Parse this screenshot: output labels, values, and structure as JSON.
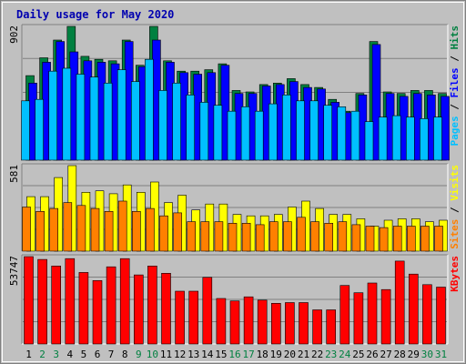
{
  "colors": {
    "background": "#c0c0c0",
    "plot_bg": "#c0c0c0",
    "gridline": "#808080",
    "title": "#0000b0",
    "hits": "#008040",
    "files": "#0000ff",
    "pages": "#00c0ff",
    "visits": "#ffff00",
    "sites": "#ff8000",
    "kbytes": "#ff0000",
    "day_weekday": "#000000",
    "day_weekend": "#008040"
  },
  "chart_data": {
    "type": "bar",
    "title": "Daily usage for May 2020",
    "categories": [
      "1",
      "2",
      "3",
      "4",
      "5",
      "6",
      "7",
      "8",
      "9",
      "10",
      "11",
      "12",
      "13",
      "14",
      "15",
      "16",
      "17",
      "18",
      "19",
      "20",
      "21",
      "22",
      "23",
      "24",
      "25",
      "26",
      "27",
      "28",
      "29",
      "30",
      "31"
    ],
    "weekend_days": [
      "2",
      "3",
      "9",
      "10",
      "16",
      "17",
      "23",
      "24",
      "30",
      "31"
    ],
    "panels": [
      {
        "name": "hits-files-pages",
        "axis_max_label": "902",
        "ymax": 902,
        "right_label_parts": [
          {
            "text": "Pages",
            "color_key": "pages"
          },
          {
            "text": " / ",
            "color_key": "day_weekday"
          },
          {
            "text": "Files",
            "color_key": "files"
          },
          {
            "text": " / ",
            "color_key": "day_weekday"
          },
          {
            "text": "Hits",
            "color_key": "hits"
          }
        ],
        "series": [
          {
            "name": "Hits",
            "color_key": "hits",
            "values": [
              570,
              690,
              810,
              902,
              700,
              680,
              670,
              810,
              640,
              902,
              670,
              600,
              600,
              610,
              650,
              470,
              460,
              510,
              520,
              550,
              510,
              490,
              410,
              330,
              450,
              800,
              460,
              450,
              470,
              470,
              450
            ]
          },
          {
            "name": "Files",
            "color_key": "files",
            "values": [
              520,
              660,
              800,
              730,
              670,
              660,
              650,
              800,
              630,
              810,
              660,
              590,
              580,
              590,
              640,
              450,
              450,
              500,
              510,
              530,
              490,
              480,
              390,
              320,
              440,
              780,
              450,
              430,
              450,
              440,
              430
            ]
          },
          {
            "name": "Pages",
            "color_key": "pages",
            "values": [
              400,
              410,
              600,
              620,
              580,
              560,
              520,
              610,
              530,
              680,
              470,
              520,
              440,
              390,
              370,
              330,
              360,
              330,
              380,
              440,
              400,
              400,
              370,
              360,
              330,
              260,
              290,
              300,
              290,
              280,
              290
            ]
          }
        ]
      },
      {
        "name": "visits-sites",
        "axis_max_label": "581",
        "ymax": 581,
        "right_label_parts": [
          {
            "text": "Sites",
            "color_key": "sites"
          },
          {
            "text": " / ",
            "color_key": "day_weekday"
          },
          {
            "text": "Visits",
            "color_key": "visits"
          }
        ],
        "series": [
          {
            "name": "Visits",
            "color_key": "visits",
            "values": [
              370,
              370,
              500,
              581,
              400,
              410,
              390,
              450,
              400,
              470,
              330,
              380,
              280,
              320,
              320,
              250,
              240,
              240,
              250,
              300,
              340,
              290,
              250,
              250,
              220,
              170,
              210,
              220,
              220,
              200,
              210
            ]
          },
          {
            "name": "Sites",
            "color_key": "sites",
            "values": [
              300,
              270,
              290,
              330,
              310,
              290,
              270,
              340,
              270,
              290,
              240,
              260,
              200,
              200,
              200,
              190,
              190,
              180,
              200,
              200,
              230,
              200,
              190,
              200,
              180,
              170,
              160,
              170,
              170,
              170,
              170
            ]
          }
        ]
      },
      {
        "name": "kbytes",
        "axis_max_label": "53747",
        "ymax": 53747,
        "right_label_parts": [
          {
            "text": "KBytes",
            "color_key": "kbytes"
          }
        ],
        "series": [
          {
            "name": "KBytes",
            "color_key": "kbytes",
            "values": [
              53747,
              52000,
              48000,
              52500,
              44000,
              39000,
              47500,
              52500,
              42500,
              48000,
              43500,
              32500,
              32500,
              41000,
              28000,
              26500,
              29000,
              27000,
              25000,
              25500,
              25500,
              21000,
              21000,
              36000,
              31500,
              37500,
              33500,
              51000,
              43000,
              36500,
              35000
            ]
          }
        ]
      }
    ]
  }
}
